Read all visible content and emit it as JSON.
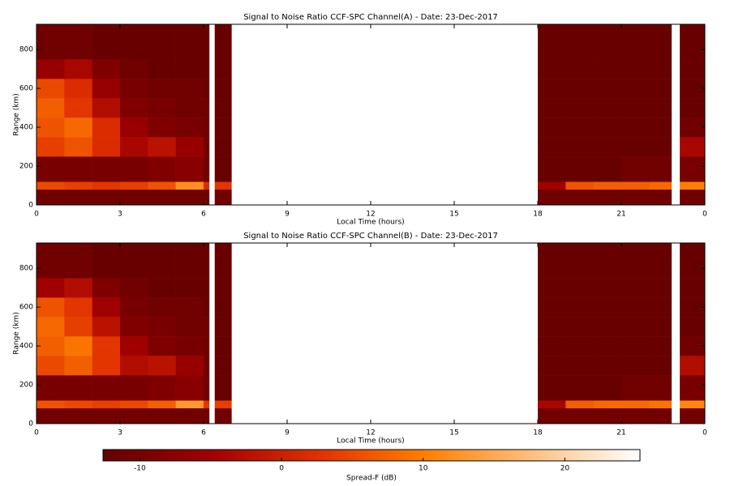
{
  "chart_data": [
    {
      "type": "heatmap",
      "title": "Signal to Noise Ratio CCF-SPC Channel(A) - Date: 23-Dec-2017",
      "x_label": "Local Time (hours)",
      "y_label": "Range (km)",
      "xlim": [
        0,
        24
      ],
      "ylim": [
        0,
        930
      ],
      "xticks": [
        0,
        3,
        6,
        9,
        12,
        15,
        18,
        21,
        {
          "value": 24,
          "label": "0"
        }
      ],
      "yticks": [
        0,
        200,
        400,
        600,
        800
      ],
      "x_edges": [
        0,
        1,
        2,
        3,
        4,
        5,
        6,
        6.2,
        6.4,
        7,
        18,
        19,
        20,
        21,
        22,
        22.8,
        23.1,
        24
      ],
      "y_edges": [
        0,
        80,
        120,
        250,
        350,
        450,
        550,
        650,
        750,
        930
      ],
      "values": [
        [
          -11,
          -11,
          -11,
          -11,
          -11,
          -11,
          -11,
          null,
          -11,
          null,
          -11,
          -11,
          -11,
          -11,
          -11,
          null,
          -11
        ],
        [
          5,
          4,
          3,
          4,
          6,
          12,
          2,
          null,
          3,
          null,
          -5,
          6,
          7,
          7,
          8,
          null,
          10
        ],
        [
          -10,
          -10,
          -10,
          -10,
          -9,
          -8,
          -11,
          null,
          -12,
          null,
          -12,
          -12,
          -12,
          -11,
          -11,
          null,
          -10
        ],
        [
          4,
          6,
          2,
          -4,
          -2,
          -6,
          -11,
          null,
          -12,
          null,
          -12,
          -12,
          -12,
          -12,
          -12,
          null,
          -4
        ],
        [
          6,
          8,
          2,
          -6,
          -9,
          -10,
          -11,
          null,
          -12,
          null,
          -12,
          -12,
          -12,
          -12,
          -12,
          null,
          -11
        ],
        [
          7,
          3,
          -3,
          -9,
          -10,
          -11,
          -11,
          null,
          -12,
          null,
          -12,
          -12,
          -12,
          -12,
          -12,
          null,
          -12
        ],
        [
          5,
          2,
          -6,
          -10,
          -11,
          -11,
          -12,
          null,
          -12,
          null,
          -12,
          -12,
          -12,
          -12,
          -12,
          null,
          -12
        ],
        [
          -6,
          -4,
          -9,
          -11,
          -12,
          -12,
          -12,
          null,
          -12,
          null,
          -12,
          -12,
          -12,
          -12,
          -12,
          null,
          -12
        ],
        [
          -11,
          -11,
          -12,
          -12,
          -12,
          -12,
          -12,
          null,
          -12,
          null,
          -12,
          -12,
          -12,
          -12,
          -12,
          null,
          -12
        ]
      ]
    },
    {
      "type": "heatmap",
      "title": "Signal to Noise Ratio CCF-SPC Channel(B) - Date: 23-Dec-2017",
      "x_label": "Local Time (hours)",
      "y_label": "Range (km)",
      "xlim": [
        0,
        24
      ],
      "ylim": [
        0,
        930
      ],
      "xticks": [
        0,
        3,
        6,
        9,
        12,
        15,
        18,
        21,
        {
          "value": 24,
          "label": "0"
        }
      ],
      "yticks": [
        0,
        200,
        400,
        600,
        800
      ],
      "x_edges": [
        0,
        1,
        2,
        3,
        4,
        5,
        6,
        6.2,
        6.4,
        7,
        18,
        19,
        20,
        21,
        22,
        22.8,
        23.1,
        24
      ],
      "y_edges": [
        0,
        80,
        120,
        250,
        350,
        450,
        550,
        650,
        750,
        930
      ],
      "values": [
        [
          -11,
          -11,
          -11,
          -11,
          -11,
          -11,
          -11,
          null,
          -11,
          null,
          -11,
          -11,
          -11,
          -11,
          -11,
          null,
          -11
        ],
        [
          6,
          5,
          4,
          5,
          7,
          13,
          3,
          null,
          4,
          null,
          -4,
          7,
          8,
          8,
          9,
          null,
          11
        ],
        [
          -10,
          -10,
          -10,
          -10,
          -9,
          -8,
          -11,
          null,
          -12,
          null,
          -12,
          -12,
          -12,
          -11,
          -11,
          null,
          -10
        ],
        [
          5,
          7,
          3,
          -3,
          -2,
          -6,
          -11,
          null,
          -12,
          null,
          -12,
          -12,
          -12,
          -12,
          -12,
          null,
          -3
        ],
        [
          7,
          9,
          3,
          -5,
          -9,
          -10,
          -11,
          null,
          -12,
          null,
          -12,
          -12,
          -12,
          -12,
          -12,
          null,
          -11
        ],
        [
          8,
          4,
          -2,
          -9,
          -10,
          -11,
          -11,
          null,
          -12,
          null,
          -12,
          -12,
          -12,
          -12,
          -12,
          null,
          -12
        ],
        [
          6,
          3,
          -5,
          -10,
          -11,
          -11,
          -12,
          null,
          -12,
          null,
          -12,
          -12,
          -12,
          -12,
          -12,
          null,
          -12
        ],
        [
          -5,
          -3,
          -9,
          -11,
          -12,
          -12,
          -12,
          null,
          -12,
          null,
          -12,
          -12,
          -12,
          -12,
          -12,
          null,
          -12
        ],
        [
          -11,
          -11,
          -12,
          -12,
          -12,
          -12,
          -12,
          null,
          -12,
          null,
          -12,
          -12,
          -12,
          -12,
          -12,
          null,
          -12
        ]
      ]
    },
    {
      "type": "colorbar",
      "label": "Spread-F (dB)",
      "clim": [
        -12.6,
        25.3
      ],
      "ticks": [
        -10,
        0,
        10,
        20
      ],
      "colors": [
        "#640000",
        "#a00000",
        "#e03000",
        "#ff8000",
        "#ffc080",
        "#ffffff"
      ]
    }
  ]
}
